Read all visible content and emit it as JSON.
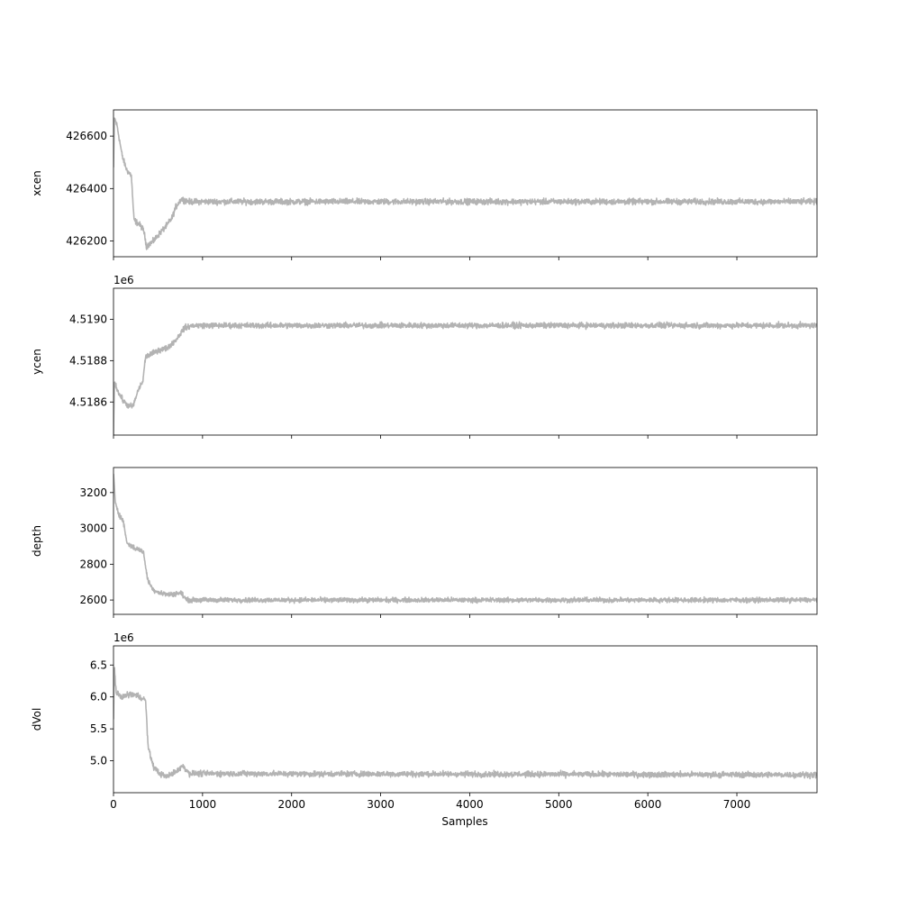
{
  "chart_data": {
    "type": "line",
    "xlabel": "Samples",
    "x_ticks": [
      0,
      1000,
      2000,
      3000,
      4000,
      5000,
      6000,
      7000
    ],
    "xlim": [
      0,
      7900
    ],
    "line_color": "#b3b3b3",
    "panels": [
      {
        "ylabel": "xcen",
        "offset_text": "",
        "ylim": [
          426140,
          426700
        ],
        "y_ticks": [
          426200,
          426400,
          426600
        ],
        "y_tick_labels": [
          "426200",
          "426400",
          "426600"
        ],
        "keypoints": [
          [
            0,
            426480
          ],
          [
            10,
            426670
          ],
          [
            40,
            426640
          ],
          [
            100,
            426520
          ],
          [
            150,
            426470
          ],
          [
            200,
            426450
          ],
          [
            230,
            426280
          ],
          [
            300,
            426260
          ],
          [
            340,
            426240
          ],
          [
            370,
            426180
          ],
          [
            450,
            426200
          ],
          [
            520,
            426230
          ],
          [
            600,
            426260
          ],
          [
            660,
            426290
          ],
          [
            700,
            426330
          ],
          [
            760,
            426360
          ],
          [
            850,
            426350
          ],
          [
            7900,
            426350
          ]
        ],
        "noise": 10
      },
      {
        "ylabel": "ycen",
        "offset_text": "1e6",
        "ylim": [
          4.51844,
          4.51915
        ],
        "y_ticks": [
          4.5186,
          4.5188,
          4.519
        ],
        "y_tick_labels": [
          "4.5186",
          "4.5188",
          "4.5190"
        ],
        "keypoints": [
          [
            0,
            4.51845
          ],
          [
            10,
            4.5187
          ],
          [
            60,
            4.51864
          ],
          [
            120,
            4.5186
          ],
          [
            170,
            4.51858
          ],
          [
            220,
            4.51858
          ],
          [
            280,
            4.51866
          ],
          [
            330,
            4.5187
          ],
          [
            360,
            4.51882
          ],
          [
            420,
            4.51883
          ],
          [
            500,
            4.51885
          ],
          [
            600,
            4.51886
          ],
          [
            700,
            4.5189
          ],
          [
            800,
            4.51896
          ],
          [
            900,
            4.51897
          ],
          [
            7900,
            4.51897
          ]
        ],
        "noise": 1.2e-05
      },
      {
        "ylabel": "depth",
        "offset_text": "",
        "ylim": [
          2520,
          3340
        ],
        "y_ticks": [
          2600,
          2800,
          3000,
          3200
        ],
        "y_tick_labels": [
          "2600",
          "2800",
          "3000",
          "3200"
        ],
        "keypoints": [
          [
            0,
            3300
          ],
          [
            20,
            3150
          ],
          [
            60,
            3080
          ],
          [
            110,
            3040
          ],
          [
            150,
            2920
          ],
          [
            230,
            2890
          ],
          [
            300,
            2880
          ],
          [
            340,
            2860
          ],
          [
            380,
            2720
          ],
          [
            440,
            2660
          ],
          [
            520,
            2640
          ],
          [
            620,
            2630
          ],
          [
            760,
            2640
          ],
          [
            820,
            2600
          ],
          [
            900,
            2600
          ],
          [
            7900,
            2600
          ]
        ],
        "noise": 12
      },
      {
        "ylabel": "dVol",
        "offset_text": "1e6",
        "ylim": [
          4.5,
          6.8
        ],
        "y_ticks": [
          5.0,
          5.5,
          6.0,
          6.5
        ],
        "y_tick_labels": [
          "5.0",
          "5.5",
          "6.0",
          "6.5"
        ],
        "keypoints": [
          [
            0,
            5.7
          ],
          [
            10,
            6.5
          ],
          [
            30,
            6.05
          ],
          [
            100,
            6.0
          ],
          [
            200,
            6.05
          ],
          [
            300,
            6.0
          ],
          [
            360,
            5.95
          ],
          [
            390,
            5.2
          ],
          [
            450,
            4.9
          ],
          [
            520,
            4.8
          ],
          [
            600,
            4.75
          ],
          [
            720,
            4.85
          ],
          [
            780,
            4.92
          ],
          [
            850,
            4.8
          ],
          [
            7900,
            4.78
          ]
        ],
        "noise": 0.04
      }
    ]
  }
}
